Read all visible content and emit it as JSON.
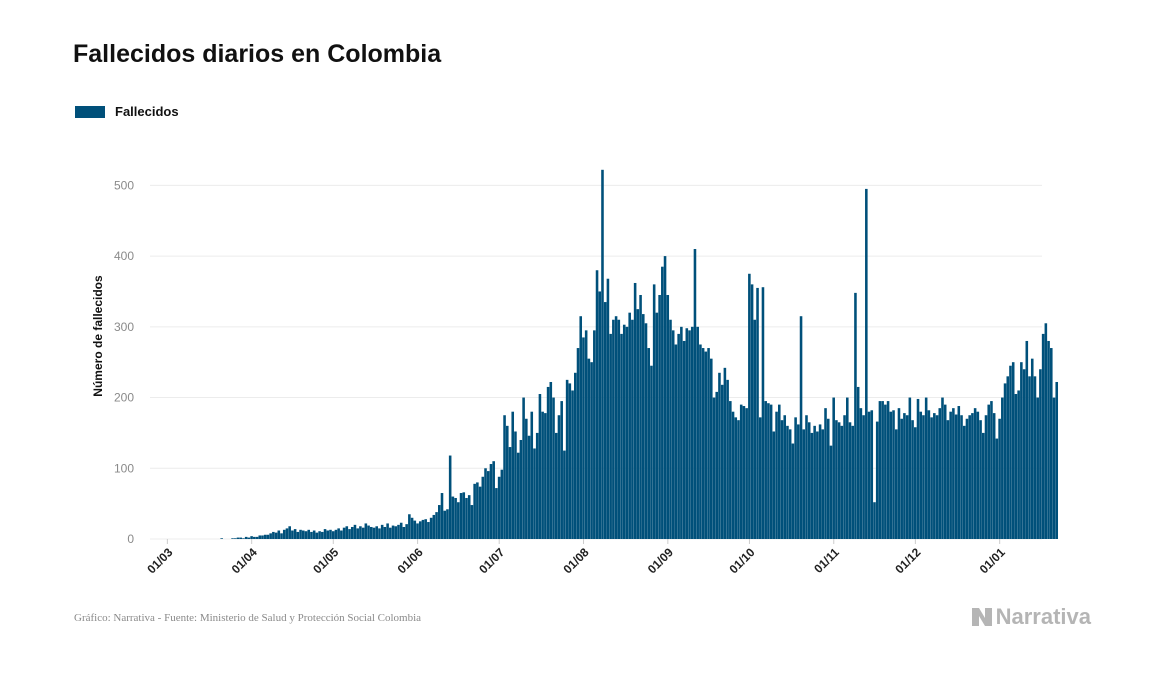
{
  "title": "Fallecidos diarios en Colombia",
  "legend": {
    "label": "Fallecidos"
  },
  "footer": {
    "source": "Gráfico: Narrativa - Fuente: Ministerio de Salud y Protección Social Colombia",
    "brand": "Narrativa"
  },
  "colors": {
    "bar": "#00507a",
    "grid": "#ececec",
    "brand": "#b5b5b5"
  },
  "chart_data": {
    "type": "bar",
    "title": "Fallecidos diarios en Colombia",
    "xlabel": "",
    "ylabel": "Número de fallecidos",
    "ylim": [
      0,
      550
    ],
    "yticks": [
      0,
      100,
      200,
      300,
      400,
      500
    ],
    "grid": true,
    "legend_position": "top-left",
    "x_start": "2020-03-01",
    "xticks": [
      {
        "date": "2020-03-01",
        "label": "01/03"
      },
      {
        "date": "2020-04-01",
        "label": "01/04"
      },
      {
        "date": "2020-05-01",
        "label": "01/05"
      },
      {
        "date": "2020-06-01",
        "label": "01/06"
      },
      {
        "date": "2020-07-01",
        "label": "01/07"
      },
      {
        "date": "2020-08-01",
        "label": "01/08"
      },
      {
        "date": "2020-09-01",
        "label": "01/09"
      },
      {
        "date": "2020-10-01",
        "label": "01/10"
      },
      {
        "date": "2020-11-01",
        "label": "01/11"
      },
      {
        "date": "2020-12-01",
        "label": "01/12"
      },
      {
        "date": "2021-01-01",
        "label": "01/01"
      }
    ],
    "series": [
      {
        "name": "Fallecidos",
        "values": [
          0,
          0,
          0,
          0,
          0,
          0,
          0,
          0,
          0,
          0,
          0,
          0,
          0,
          0,
          0,
          0,
          0,
          0,
          0,
          0,
          1,
          0,
          0,
          0,
          1,
          1,
          2,
          2,
          1,
          3,
          2,
          4,
          3,
          3,
          5,
          5,
          6,
          6,
          8,
          10,
          9,
          12,
          8,
          13,
          15,
          18,
          12,
          14,
          10,
          13,
          12,
          11,
          13,
          10,
          12,
          9,
          11,
          10,
          14,
          12,
          13,
          11,
          13,
          15,
          12,
          16,
          18,
          14,
          17,
          20,
          15,
          18,
          16,
          22,
          19,
          17,
          16,
          18,
          15,
          20,
          17,
          22,
          16,
          19,
          18,
          20,
          23,
          17,
          21,
          35,
          30,
          26,
          22,
          25,
          27,
          28,
          24,
          30,
          34,
          38,
          48,
          65,
          40,
          42,
          118,
          60,
          58,
          52,
          65,
          66,
          58,
          62,
          48,
          78,
          80,
          74,
          88,
          100,
          96,
          106,
          110,
          72,
          88,
          98,
          175,
          160,
          130,
          180,
          152,
          122,
          140,
          200,
          170,
          146,
          180,
          128,
          150,
          205,
          180,
          178,
          215,
          222,
          200,
          150,
          175,
          195,
          125,
          225,
          220,
          210,
          235,
          270,
          315,
          285,
          295,
          255,
          250,
          295,
          380,
          350,
          522,
          335,
          368,
          290,
          310,
          315,
          310,
          290,
          303,
          300,
          320,
          310,
          362,
          325,
          345,
          318,
          305,
          270,
          245,
          360,
          320,
          345,
          385,
          400,
          345,
          310,
          295,
          275,
          290,
          300,
          280,
          298,
          295,
          300,
          410,
          300,
          275,
          270,
          265,
          270,
          255,
          200,
          208,
          235,
          218,
          242,
          225,
          195,
          180,
          172,
          168,
          190,
          188,
          185,
          375,
          360,
          310,
          355,
          172,
          356,
          195,
          192,
          190,
          152,
          180,
          190,
          168,
          175,
          160,
          155,
          135,
          172,
          162,
          315,
          155,
          175,
          165,
          150,
          160,
          152,
          162,
          155,
          185,
          170,
          132,
          200,
          168,
          165,
          160,
          175,
          200,
          165,
          160,
          348,
          215,
          185,
          175,
          495,
          180,
          182,
          52,
          166,
          195,
          195,
          190,
          195,
          180,
          182,
          155,
          185,
          170,
          178,
          175,
          200,
          168,
          158,
          198,
          180,
          175,
          200,
          182,
          172,
          178,
          175,
          185,
          200,
          190,
          168,
          180,
          185,
          176,
          188,
          175,
          160,
          170,
          175,
          178,
          185,
          180,
          168,
          150,
          175,
          190,
          195,
          178,
          142,
          170,
          200,
          220,
          230,
          245,
          250,
          205,
          210,
          250,
          240,
          280,
          230,
          255,
          230,
          200,
          240,
          290,
          305,
          280,
          270,
          200,
          222
        ]
      }
    ]
  }
}
